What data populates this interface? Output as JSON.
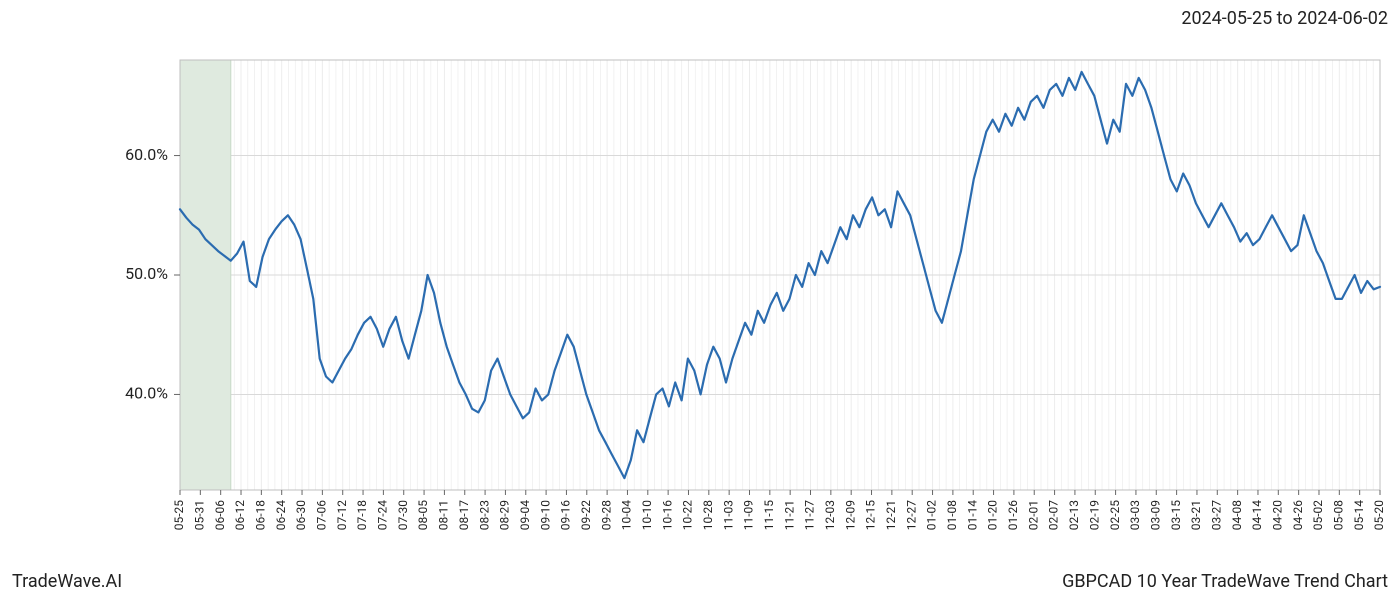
{
  "header": {
    "date_range": "2024-05-25 to 2024-06-02"
  },
  "footer": {
    "brand": "TradeWave.AI",
    "chart_title": "GBPCAD 10 Year TradeWave Trend Chart"
  },
  "chart": {
    "type": "line",
    "background_color": "#ffffff",
    "plot_border_color": "#bfbfbf",
    "grid_color_major": "#d9d9d9",
    "grid_color_minor": "#ececec",
    "line_color": "#2b6cb0",
    "line_width": 2.2,
    "highlight_band": {
      "fill": "#dfeadf",
      "stroke": "#c7d8c7",
      "x_start_index": 0,
      "x_end_index": 8
    },
    "y_axis": {
      "min": 32,
      "max": 68,
      "ticks": [
        40,
        50,
        60
      ],
      "tick_labels": [
        "40.0%",
        "50.0%",
        "60.0%"
      ],
      "label_fontsize": 16
    },
    "x_axis": {
      "labels": [
        "05-25",
        "05-31",
        "06-06",
        "06-12",
        "06-18",
        "06-24",
        "06-30",
        "07-06",
        "07-12",
        "07-18",
        "07-24",
        "07-30",
        "08-05",
        "08-11",
        "08-17",
        "08-23",
        "08-29",
        "09-04",
        "09-10",
        "09-16",
        "09-22",
        "09-28",
        "10-04",
        "10-10",
        "10-16",
        "10-22",
        "10-28",
        "11-03",
        "11-09",
        "11-15",
        "11-21",
        "11-27",
        "12-03",
        "12-09",
        "12-15",
        "12-21",
        "12-27",
        "01-02",
        "01-08",
        "01-14",
        "01-20",
        "01-26",
        "02-01",
        "02-07",
        "02-13",
        "02-19",
        "02-25",
        "03-03",
        "03-09",
        "03-15",
        "03-21",
        "03-27",
        "04-08",
        "04-14",
        "04-20",
        "04-26",
        "05-02",
        "05-08",
        "05-14",
        "05-20"
      ],
      "label_fontsize": 12,
      "rotation": -90
    },
    "series": {
      "values": [
        55.5,
        54.8,
        54.2,
        53.8,
        53.0,
        52.5,
        52.0,
        51.6,
        51.2,
        51.8,
        52.8,
        49.5,
        49.0,
        51.5,
        53.0,
        53.8,
        54.5,
        55.0,
        54.2,
        53.0,
        50.5,
        48.0,
        43.0,
        41.5,
        41.0,
        42.0,
        43.0,
        43.8,
        45.0,
        46.0,
        46.5,
        45.5,
        44.0,
        45.5,
        46.5,
        44.5,
        43.0,
        45.0,
        47.0,
        50.0,
        48.5,
        46.0,
        44.0,
        42.5,
        41.0,
        40.0,
        38.8,
        38.5,
        39.5,
        42.0,
        43.0,
        41.5,
        40.0,
        39.0,
        38.0,
        38.5,
        40.5,
        39.5,
        40.0,
        42.0,
        43.5,
        45.0,
        44.0,
        42.0,
        40.0,
        38.5,
        37.0,
        36.0,
        35.0,
        34.0,
        33.0,
        34.5,
        37.0,
        36.0,
        38.0,
        40.0,
        40.5,
        39.0,
        41.0,
        39.5,
        43.0,
        42.0,
        40.0,
        42.5,
        44.0,
        43.0,
        41.0,
        43.0,
        44.5,
        46.0,
        45.0,
        47.0,
        46.0,
        47.5,
        48.5,
        47.0,
        48.0,
        50.0,
        49.0,
        51.0,
        50.0,
        52.0,
        51.0,
        52.5,
        54.0,
        53.0,
        55.0,
        54.0,
        55.5,
        56.5,
        55.0,
        55.5,
        54.0,
        57.0,
        56.0,
        55.0,
        53.0,
        51.0,
        49.0,
        47.0,
        46.0,
        48.0,
        50.0,
        52.0,
        55.0,
        58.0,
        60.0,
        62.0,
        63.0,
        62.0,
        63.5,
        62.5,
        64.0,
        63.0,
        64.5,
        65.0,
        64.0,
        65.5,
        66.0,
        65.0,
        66.5,
        65.5,
        67.0,
        66.0,
        65.0,
        63.0,
        61.0,
        63.0,
        62.0,
        66.0,
        65.0,
        66.5,
        65.5,
        64.0,
        62.0,
        60.0,
        58.0,
        57.0,
        58.5,
        57.5,
        56.0,
        55.0,
        54.0,
        55.0,
        56.0,
        55.0,
        54.0,
        52.8,
        53.5,
        52.5,
        53.0,
        54.0,
        55.0,
        54.0,
        53.0,
        52.0,
        52.5,
        55.0,
        53.5,
        52.0,
        51.0,
        49.5,
        48.0,
        48.0,
        49.0,
        50.0,
        48.5,
        49.5,
        48.8,
        49.0
      ]
    }
  }
}
